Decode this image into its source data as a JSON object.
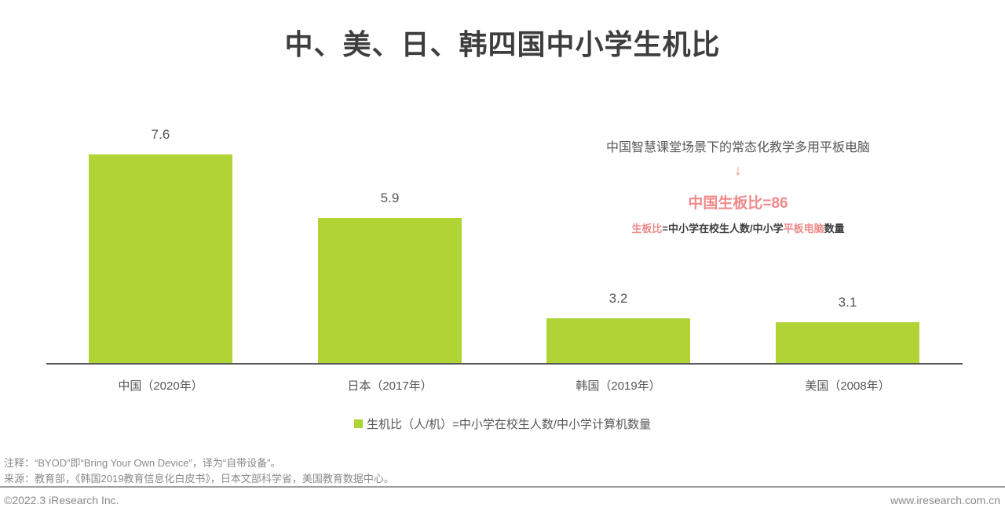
{
  "title": "中、美、日、韩四国中小学生机比",
  "chart_data": {
    "type": "bar",
    "title": "中、美、日、韩四国中小学生机比",
    "categories": [
      "中国（2020年）",
      "日本（2017年）",
      "韩国（2019年）",
      "美国（2008年）"
    ],
    "values": [
      7.6,
      5.9,
      3.2,
      3.1
    ],
    "ylim": [
      2,
      7.6
    ],
    "grid": false,
    "legend_position": "bottom",
    "legend": [
      "生机比（人/机）=中小学在校生人数/中小学计算机数量"
    ],
    "bar_color": "#b0d335",
    "annotations": [
      "中国智慧课堂场景下的常态化教学多用平板电脑",
      "中国生板比=86",
      "生板比=中小学在校生人数/中小学平板电脑数量"
    ]
  },
  "annotation": {
    "line1": "中国智慧课堂场景下的常态化教学多用平板电脑",
    "arrow": "↓",
    "highlight": "中国生板比=86",
    "formula": {
      "part1": "生板比",
      "part2": "=中小学在校生人数/中小学",
      "part3": "平板电脑",
      "part4": "数量"
    }
  },
  "legend": {
    "label": "生机比（人/机）=中小学在校生人数/中小学计算机数量",
    "swatch_color": "#b0d335"
  },
  "notes": {
    "note": "注释：“BYOD”即“Bring Your Own Device”，译为“自带设备”。",
    "source": "来源：教育部，《韩国2019教育信息化白皮书》，日本文部科学省，美国教育数据中心。"
  },
  "footer": {
    "copyright": "©2022.3 iResearch Inc.",
    "website": "www.iresearch.com.cn"
  },
  "colors": {
    "bar_green": "#b0d335",
    "accent_pink": "#f08a8a",
    "title_dark": "#3e3e3e",
    "text_gray": "#595757",
    "note_gray": "#8a8a8a"
  }
}
